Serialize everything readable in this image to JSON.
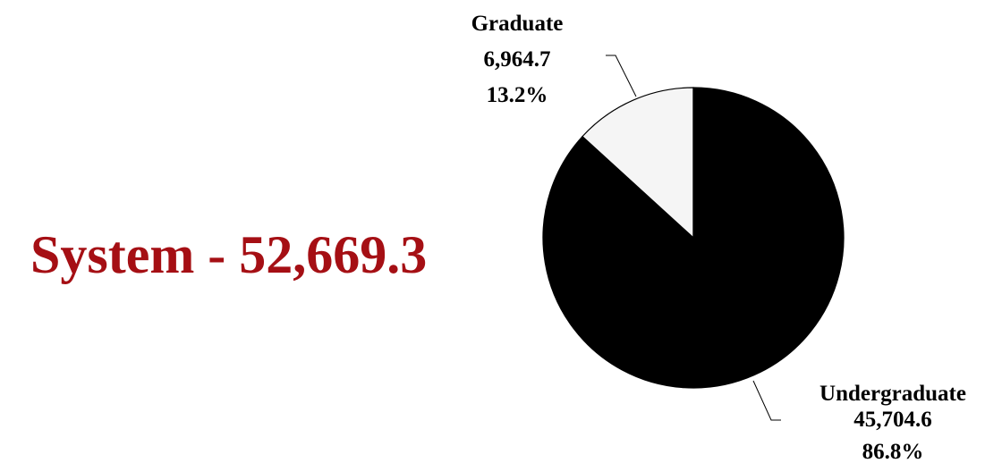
{
  "headline": {
    "text": "System - 52,669.3",
    "color": "#a50f14"
  },
  "chart_data": {
    "type": "pie",
    "slices": [
      {
        "name": "Graduate",
        "value": 6964.7,
        "value_label": "6,964.7",
        "percent_label": "13.2%",
        "color": "#f5f5f5"
      },
      {
        "name": "Undergraduate",
        "value": 45704.6,
        "value_label": "45,704.6",
        "percent_label": "86.8%",
        "color": "#000000"
      }
    ],
    "total": 52669.3,
    "legend": "none"
  }
}
